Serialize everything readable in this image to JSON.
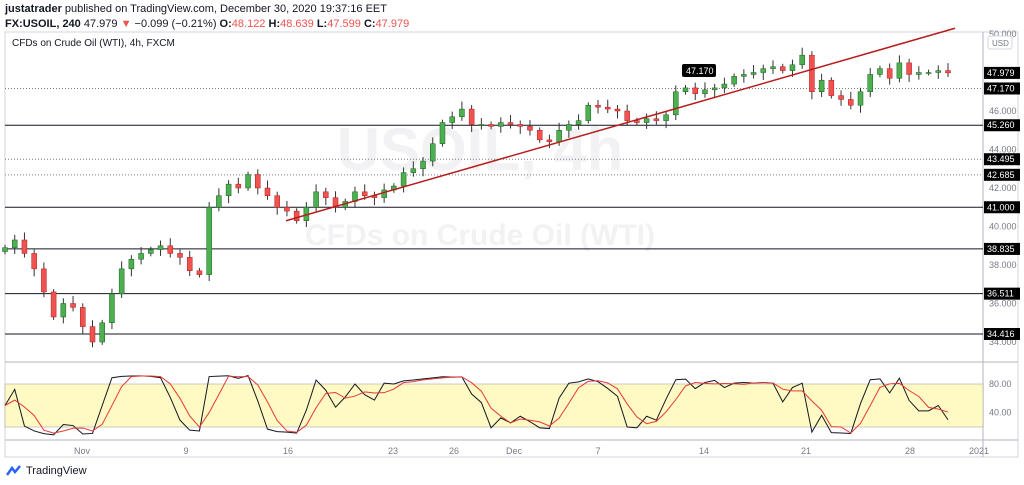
{
  "header": {
    "author": "justatrader",
    "published": "published on TradingView.com, December 30, 2020 19:37:16 EET",
    "symbol": "FX:USOIL, 240",
    "last": "47.979",
    "change": "−0.099 (−0.21%)",
    "o_label": "O:",
    "o": "48.122",
    "h_label": "H:",
    "h": "48.639",
    "l_label": "L:",
    "l": "47.599",
    "c_label": "C:",
    "c": "47.979"
  },
  "legend": "CFDs on Crude Oil (WTI), 4h, FXCM",
  "watermark": {
    "line1": "USOIL, 4h",
    "line2": "CFDs on Crude Oil (WTI)"
  },
  "footer": {
    "brand": "TradingView"
  },
  "colors": {
    "up": "#26a69a",
    "up_fill": "#4caf50",
    "down": "#ef5350",
    "trend": "#b71c1c",
    "band": "#fff9c4"
  },
  "chart_data": {
    "type": "candlestick",
    "currency": "USD",
    "ylim": [
      33.4,
      50.0
    ],
    "y_ticks": [
      "50.000",
      "46.000",
      "44.000",
      "42.000",
      "40.000",
      "38.000",
      "36.000",
      "34.000"
    ],
    "x_ticks": [
      "Nov",
      "9",
      "16",
      "23",
      "26",
      "Dec",
      "7",
      "14",
      "21",
      "28",
      "2021"
    ],
    "closes": [
      38.9,
      39.3,
      38.6,
      37.8,
      36.6,
      35.3,
      36.0,
      35.8,
      34.8,
      34.0,
      35.0,
      36.5,
      37.8,
      38.3,
      38.6,
      38.8,
      39.0,
      38.6,
      38.4,
      37.7,
      37.5,
      41.0,
      41.6,
      42.2,
      42.0,
      42.7,
      42.0,
      41.6,
      41.0,
      40.8,
      40.3,
      41.0,
      41.8,
      41.5,
      41.0,
      41.3,
      41.8,
      41.6,
      41.5,
      41.9,
      42.1,
      42.8,
      43.0,
      43.4,
      44.3,
      45.4,
      45.7,
      46.1,
      45.3,
      45.3,
      45.2,
      45.4,
      45.3,
      45.2,
      45.0,
      44.5,
      44.4,
      45.0,
      45.3,
      45.5,
      46.3,
      46.2,
      46.1,
      46.0,
      45.5,
      45.4,
      45.6,
      45.5,
      45.8,
      47.0,
      47.2,
      46.9,
      47.1,
      47.2,
      47.4,
      47.8,
      47.9,
      48.0,
      48.2,
      48.3,
      48.1,
      48.4,
      48.9,
      47.0,
      47.6,
      46.8,
      46.6,
      46.3,
      47.0,
      47.9,
      48.2,
      47.7,
      48.5,
      47.9,
      48.0,
      48.0,
      48.1,
      47.979
    ],
    "levels": [
      {
        "price": 47.17,
        "label": "47.170",
        "style": "dotted"
      },
      {
        "price": 45.26,
        "label": "45.260",
        "style": "solid"
      },
      {
        "price": 43.495,
        "label": "43.495",
        "style": "dotted"
      },
      {
        "price": 42.685,
        "label": "42.685",
        "style": "dotted"
      },
      {
        "price": 41.0,
        "label": "41.000",
        "style": "solid"
      },
      {
        "price": 38.835,
        "label": "38.835",
        "style": "solid"
      },
      {
        "price": 36.511,
        "label": "36.511",
        "style": "solid"
      },
      {
        "price": 34.416,
        "label": "34.416",
        "style": "solid"
      }
    ],
    "last_price_label": "47.979",
    "callout": "47.170",
    "trendline": {
      "from_price": 40.3,
      "to_price": 50.3
    },
    "oscillator": {
      "type": "stochastic",
      "k_color": "#131722",
      "d_color": "#e53935",
      "band": [
        20,
        80
      ],
      "ticks": [
        "80.00",
        "40.00"
      ]
    }
  }
}
